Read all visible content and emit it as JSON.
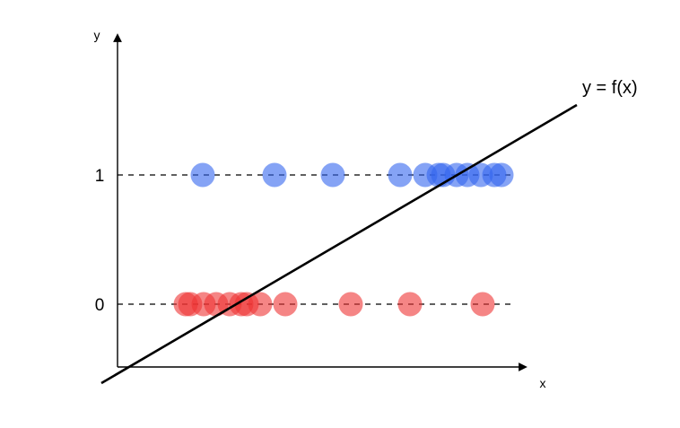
{
  "chart_data": {
    "type": "scatter",
    "xlabel": "x",
    "ylabel": "y",
    "y_ticks": [
      "1",
      "0"
    ],
    "function_label": "y = f(x)",
    "grid": false,
    "colors": {
      "class_1": "#3366ee",
      "class_0": "#ee3333"
    },
    "series": [
      {
        "values_y": 1,
        "color": "#3366ee",
        "x": [
          226,
          306,
          371,
          446,
          474,
          489,
          494,
          509,
          521,
          536,
          551,
          559
        ]
      },
      {
        "values_y": 0,
        "color": "#ee3333",
        "x": [
          207,
          212,
          227,
          241,
          256,
          269,
          275,
          290,
          318,
          391,
          457,
          538
        ]
      }
    ]
  }
}
